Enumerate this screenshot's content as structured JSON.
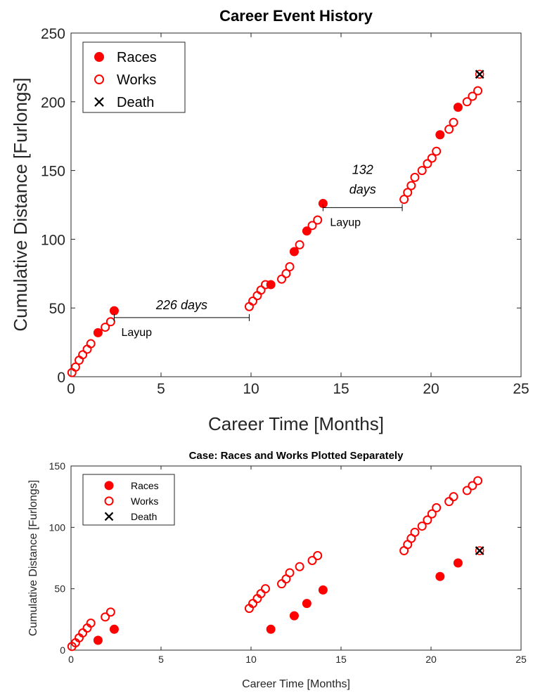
{
  "colors": {
    "marker": "#ff0000",
    "death": "#000000",
    "axis": "#262626",
    "bracket": "#000000"
  },
  "chart_data": [
    {
      "type": "scatter",
      "title": "Career Event History",
      "xlabel": "Career Time [Months]",
      "ylabel": "Cumulative Distance [Furlongs]",
      "xlim": [
        0,
        25
      ],
      "ylim": [
        0,
        250
      ],
      "xticks": [
        0,
        5,
        10,
        15,
        20,
        25
      ],
      "yticks": [
        0,
        50,
        100,
        150,
        200,
        250
      ],
      "grid": false,
      "legend_position": "top-left",
      "legend": [
        "Races",
        "Works",
        "Death"
      ],
      "series": [
        {
          "name": "Races",
          "marker": "filled-circle",
          "x": [
            1.5,
            2.4,
            11.1,
            12.4,
            13.1,
            14.0,
            20.5,
            21.5
          ],
          "y": [
            32,
            48,
            67,
            91,
            106,
            126,
            176,
            196
          ]
        },
        {
          "name": "Works",
          "marker": "open-circle",
          "x": [
            0.05,
            0.25,
            0.45,
            0.65,
            0.9,
            1.1,
            1.9,
            2.2,
            9.9,
            10.1,
            10.35,
            10.55,
            10.8,
            11.7,
            11.95,
            12.15,
            12.7,
            13.4,
            13.7,
            18.5,
            18.7,
            18.9,
            19.1,
            19.5,
            19.8,
            20.05,
            20.3,
            21.0,
            21.25,
            22.0,
            22.3,
            22.6
          ],
          "y": [
            3,
            7,
            12,
            16,
            20,
            24,
            36,
            40,
            51,
            55,
            59,
            63,
            67,
            71,
            75,
            80,
            96,
            110,
            114,
            129,
            134,
            139,
            145,
            150,
            155,
            159,
            164,
            180,
            185,
            200,
            204,
            208
          ]
        },
        {
          "name": "Death",
          "marker": "x",
          "x": [
            22.7
          ],
          "y": [
            220
          ]
        }
      ],
      "annotations": [
        {
          "label": "226 days",
          "note": "Layup",
          "x_start": 2.4,
          "x_end": 9.9,
          "y": 43
        },
        {
          "label_lines": [
            "132",
            "days"
          ],
          "note": "Layup",
          "x_start": 14.0,
          "x_end": 18.4,
          "y": 123
        }
      ]
    },
    {
      "type": "scatter",
      "title": "Case: Races and Works Plotted Separately",
      "xlabel": "Career Time [Months]",
      "ylabel": "Cumulative Distance [Furlongs]",
      "xlim": [
        0,
        25
      ],
      "ylim": [
        0,
        150
      ],
      "xticks": [
        0,
        5,
        10,
        15,
        20,
        25
      ],
      "yticks": [
        0,
        50,
        100,
        150
      ],
      "grid": false,
      "legend_position": "top-left",
      "legend": [
        "Races",
        "Works",
        "Death"
      ],
      "series": [
        {
          "name": "Races",
          "marker": "filled-circle",
          "x": [
            1.5,
            2.4,
            11.1,
            12.4,
            13.1,
            14.0,
            20.5,
            21.5
          ],
          "y": [
            8,
            17,
            17,
            28,
            38,
            49,
            60,
            71
          ]
        },
        {
          "name": "Works",
          "marker": "open-circle",
          "x": [
            0.05,
            0.25,
            0.45,
            0.65,
            0.9,
            1.1,
            1.9,
            2.2,
            9.9,
            10.1,
            10.35,
            10.55,
            10.8,
            11.7,
            11.95,
            12.15,
            12.7,
            13.4,
            13.7,
            18.5,
            18.7,
            18.9,
            19.1,
            19.5,
            19.8,
            20.05,
            20.3,
            21.0,
            21.25,
            22.0,
            22.3,
            22.6
          ],
          "y": [
            3,
            6,
            10,
            14,
            18,
            22,
            27,
            31,
            34,
            38,
            42,
            46,
            50,
            54,
            58,
            63,
            68,
            73,
            77,
            81,
            86,
            91,
            96,
            101,
            106,
            111,
            116,
            121,
            125,
            130,
            134,
            138
          ]
        },
        {
          "name": "Death",
          "marker": "x",
          "x": [
            22.7
          ],
          "y": [
            81
          ]
        }
      ]
    }
  ]
}
